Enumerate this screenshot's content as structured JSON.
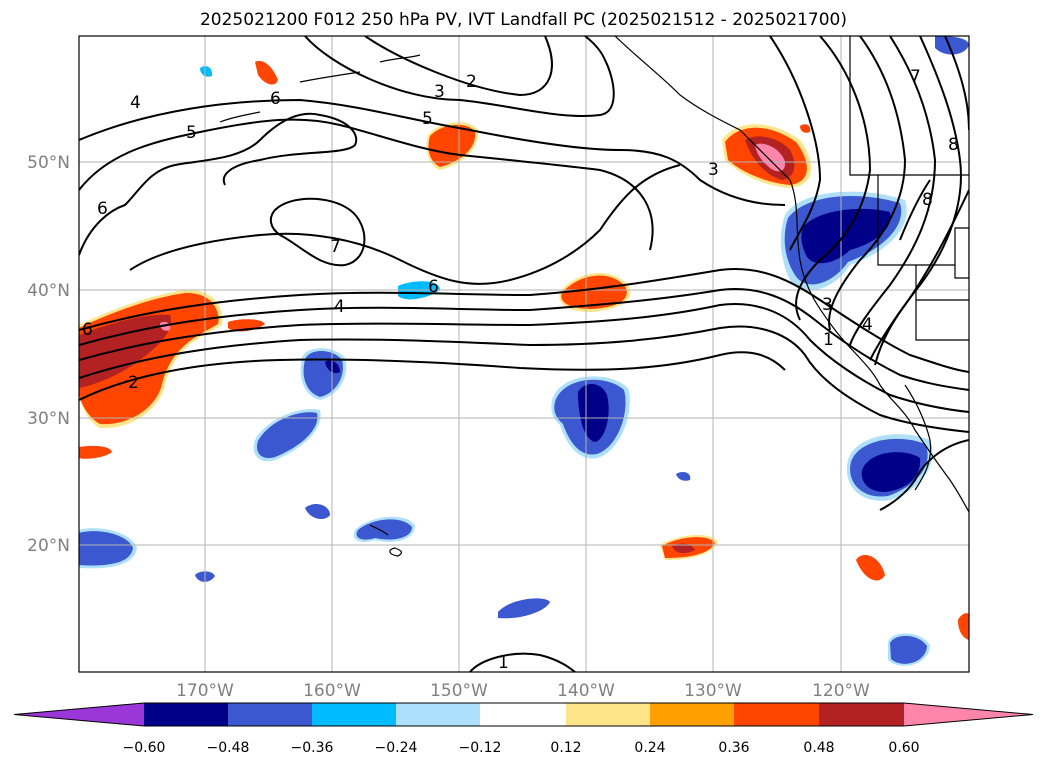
{
  "title": "2025021200 F012 250 hPa PV, IVT Landfall PC (2025021512 - 2025021700)",
  "lat_labels": [
    "50°N",
    "40°N",
    "30°N",
    "20°N"
  ],
  "lon_labels": [
    "170°W",
    "160°W",
    "150°W",
    "140°W",
    "130°W",
    "120°W"
  ],
  "contour_labels": [
    "4",
    "5",
    "6",
    "6",
    "7",
    "4",
    "2",
    "6",
    "3",
    "2",
    "5",
    "3",
    "7",
    "8",
    "8",
    "3",
    "4",
    "1",
    "1",
    "6"
  ],
  "colorbar": {
    "ticks": [
      "−0.60",
      "−0.48",
      "−0.36",
      "−0.24",
      "−0.12",
      "0.12",
      "0.24",
      "0.36",
      "0.48",
      "0.60"
    ],
    "colors": [
      "#9b36d8",
      "#000089",
      "#3b58d0",
      "#00bbff",
      "#aee0fb",
      "#ffffff",
      "#ffe58a",
      "#ff9f00",
      "#ff4500",
      "#b22222",
      "#ff85aa"
    ]
  }
}
